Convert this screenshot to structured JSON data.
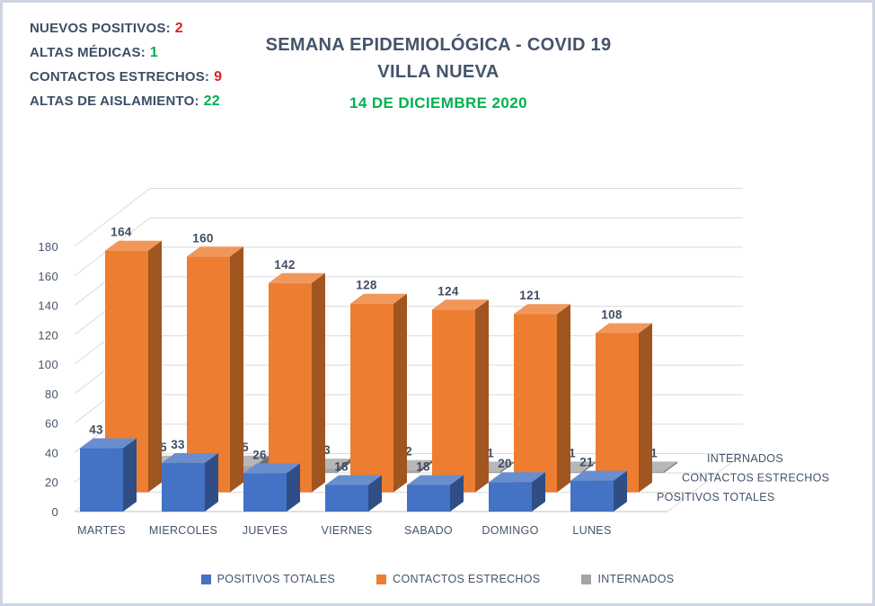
{
  "page": {
    "background": "#ffffff",
    "border_color": "#cdd4e2"
  },
  "stats": {
    "label_color": "#3c4f66",
    "items": [
      {
        "label": "NUEVOS POSITIVOS:",
        "value": "2",
        "value_color": "#e02020"
      },
      {
        "label": "ALTAS MÉDICAS:",
        "value": "1",
        "value_color": "#00b050"
      },
      {
        "label": "CONTACTOS ESTRECHOS:",
        "value": "9",
        "value_color": "#e02020"
      },
      {
        "label": "ALTAS DE AISLAMIENTO:",
        "value": "22",
        "value_color": "#00b050"
      }
    ]
  },
  "header": {
    "title_line1": "SEMANA EPIDEMIOLÓGICA - COVID 19",
    "title_line2": "VILLA NUEVA",
    "date_line": "14 DE DICIEMBRE 2020",
    "title_color": "#44546a",
    "date_color": "#00b050"
  },
  "chart_data": {
    "type": "bar",
    "projection": "3d-column",
    "categories": [
      "MARTES",
      "MIERCOLES",
      "JUEVES",
      "VIERNES",
      "SABADO",
      "DOMINGO",
      "LUNES"
    ],
    "series": [
      {
        "name": "POSITIVOS TOTALES",
        "color": "#4472c4",
        "values": [
          43,
          33,
          26,
          18,
          18,
          20,
          21
        ]
      },
      {
        "name": "CONTACTOS ESTRECHOS",
        "color": "#ed7d31",
        "values": [
          164,
          160,
          142,
          128,
          124,
          121,
          108
        ]
      },
      {
        "name": "INTERNADOS",
        "color": "#a5a5a5",
        "values": [
          5,
          5,
          3,
          2,
          1,
          1,
          1
        ]
      }
    ],
    "ylabel": "",
    "xlabel": "",
    "ylim": [
      0,
      180
    ],
    "ytick_step": 20,
    "grid": true,
    "depth_axis_labels": [
      "POSITIVOS TOTALES",
      "CONTACTOS ESTRECHOS",
      "INTERNADOS"
    ],
    "legend_position": "bottom",
    "axis_text_color": "#44546a",
    "value_label_color": "#3f4e63"
  }
}
